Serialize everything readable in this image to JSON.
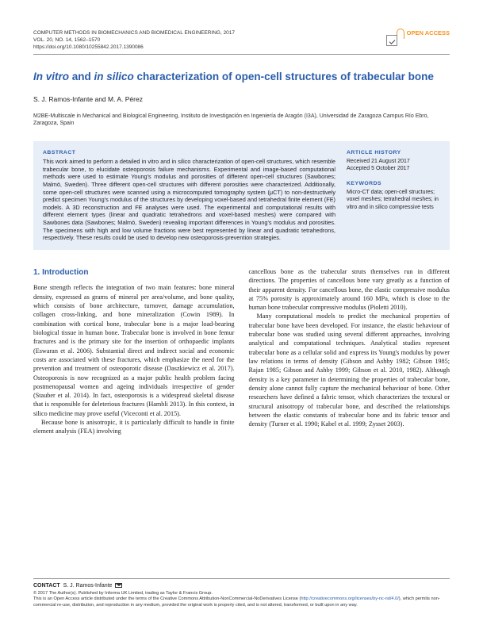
{
  "journal": {
    "name": "COMPUTER METHODS IN BIOMECHANICS AND BIOMEDICAL ENGINEERING, 2017",
    "vol": "VOL. 20, NO. 14, 1562–1570",
    "doi": "https://doi.org/10.1080/10255842.2017.1390086"
  },
  "open_access_label": "OPEN ACCESS",
  "title_pre_i1": "In vitro",
  "title_mid1": " and ",
  "title_i2": "in silico",
  "title_rest": " characterization of open-cell structures of trabecular bone",
  "authors": "S. J. Ramos-Infante and M. A. Pérez",
  "affiliation": "M2BE-Multiscale in Mechanical and Biological Engineering, Instituto de Investigación en Ingeniería de Aragón (I3A), Universidad de Zaragoza Campus Río Ebro, Zaragoza, Spain",
  "abstract": {
    "head": "ABSTRACT",
    "text": "This work aimed to perform a detailed in vitro and in silico characterization of open-cell structures, which resemble trabecular bone, to elucidate osteoporosis failure mechanisms. Experimental and image-based computational methods were used to estimate Young's modulus and porosities of different open-cell structures (Sawbones; Malmö, Sweden). Three different open-cell structures with different porosities were characterized. Additionally, some open-cell structures were scanned using a microcomputed tomography system (μCT) to non-destructively predict specimen Young's modulus of the structures by developing voxel-based and tetrahedral finite element (FE) models. A 3D reconstruction and FE analyses were used. The experimental and computational results with different element types (linear and quadratic tetrahedrons and voxel-based meshes) were compared with Sawbones data (Sawbones; Malmö, Sweden) revealing important differences in Young's modulus and porosities. The specimens with high and low volume fractions were best represented by linear and quadratic tetrahedrons, respectively. These results could be used to develop new osteoporosis-prevention strategies."
  },
  "history": {
    "head": "ARTICLE HISTORY",
    "received": "Received 21 August 2017",
    "accepted": "Accepted 5 October 2017"
  },
  "keywords": {
    "head": "KEYWORDS",
    "text": "Micro-CT data; open-cell structures; voxel meshes; tetrahedral meshes; in vitro and in silico compressive tests"
  },
  "section1_head": "1.  Introduction",
  "col1_p1": "Bone strength reflects the integration of two main features: bone mineral density, expressed as grams of mineral per area/volume, and bone quality, which consists of bone architecture, turnover, damage accumulation, collagen cross-linking, and bone mineralization (Cowin 1989). In combination with cortical bone, trabecular bone is a major load-bearing biological tissue in human bone. Trabecular bone is involved in bone femur fractures and is the primary site for the insertion of orthopaedic implants (Eswaran et al. 2006). Substantial direct and indirect social and economic costs are associated with these fractures, which emphasize the need for the prevention and treatment of osteoporotic disease (Daszkiewicz et al. 2017). Osteoporosis is now recognized as a major public health problem facing postmenopausal women and ageing individuals irrespective of gender (Stauber et al. 2014). In fact, osteoporosis is a widespread skeletal disease that is responsible for deleterious fractures (Hambli 2013). In this context, in silico medicine may prove useful (Viceconti et al. 2015).",
  "col1_p2": "Because bone is anisotropic, it is particularly difficult to handle in finite element analysis (FEA) involving",
  "col2_p1": "cancellous bone as the trabecular struts themselves run in different directions. The properties of cancellous bone vary greatly as a function of their apparent density. For cancellous bone, the elastic compressive modulus at 75% porosity is approximately around 160 MPa, which is close to the human bone trabecular compressive modulus (Pioletti 2010).",
  "col2_p2": "Many computational models to predict the mechanical properties of trabecular bone have been developed. For instance, the elastic behaviour of trabecular bone was studied using several different approaches, involving analytical and computational techniques. Analytical studies represent trabecular bone as a cellular solid and express its Young's modulus by power law relations in terms of density (Gibson and Ashby 1982; Gibson 1985; Rajan 1985; Gibson and Ashby 1999; Gibson et al. 2010, 1982). Although density is a key parameter in determining the properties of trabecular bone, density alone cannot fully capture the mechanical behaviour of bone. Other researchers have defined a fabric tensor, which characterizes the textural or structural anisotropy of trabecular bone, and described the relationships between the elastic constants of trabecular bone and its fabric tensor and density (Turner et al. 1990; Kabel et al. 1999; Zysset 2003).",
  "footer": {
    "contact_label": "CONTACT",
    "contact_name": "S. J. Ramos-Infante",
    "copyright": "© 2017 The Author(s). Published by Informa UK Limited, trading as Taylor & Francis Group.",
    "license_text": "This is an Open Access article distributed under the terms of the Creative Commons Attribution-NonCommercial-NoDerivatives License (",
    "license_url": "http://creativecommons.org/licenses/by-nc-nd/4.0/",
    "license_tail": "), which permits non-commercial re-use, distribution, and reproduction in any medium, provided the original work is properly cited, and is not altered, transformed, or built upon in any way."
  },
  "colors": {
    "brand_blue": "#2a5caa",
    "abstract_bg": "#e8eef7",
    "oa_orange": "#f7931e"
  }
}
